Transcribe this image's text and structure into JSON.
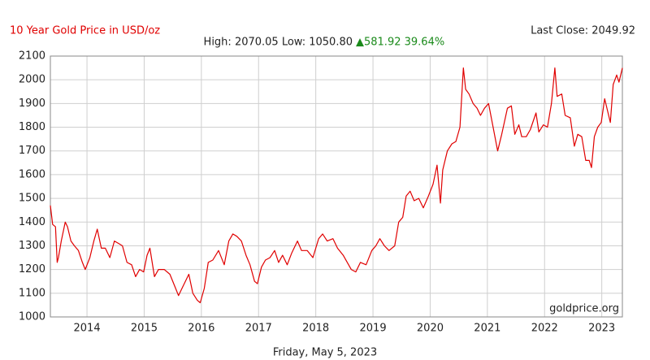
{
  "chart_data": {
    "type": "line",
    "title": "10 Year Gold Price in USD/oz",
    "last_close": "Last Close: 2049.92",
    "stats": "High: 2070.05 Low: 1050.80",
    "change": "▲581.92 39.64%",
    "source": "goldprice.org",
    "date": "Friday, May 5, 2023",
    "xlim": [
      2013.36,
      2023.36
    ],
    "xticks": [
      2014,
      2015,
      2016,
      2017,
      2018,
      2019,
      2020,
      2021,
      2022,
      2023
    ],
    "ylim": [
      1000,
      2100
    ],
    "yticks": [
      1000,
      1100,
      1200,
      1300,
      1400,
      1500,
      1600,
      1700,
      1800,
      1900,
      2000,
      2100
    ],
    "grid": true,
    "x": [
      2013.36,
      2013.4,
      2013.45,
      2013.48,
      2013.5,
      2013.55,
      2013.62,
      2013.66,
      2013.72,
      2013.78,
      2013.85,
      2013.92,
      2013.97,
      2014.05,
      2014.12,
      2014.18,
      2014.25,
      2014.32,
      2014.4,
      2014.48,
      2014.55,
      2014.62,
      2014.7,
      2014.78,
      2014.85,
      2014.92,
      2014.99,
      2015.05,
      2015.1,
      2015.18,
      2015.25,
      2015.35,
      2015.45,
      2015.55,
      2015.6,
      2015.68,
      2015.78,
      2015.85,
      2015.93,
      2015.98,
      2016.05,
      2016.12,
      2016.2,
      2016.3,
      2016.4,
      2016.48,
      2016.55,
      2016.62,
      2016.7,
      2016.78,
      2016.85,
      2016.93,
      2016.98,
      2017.05,
      2017.12,
      2017.2,
      2017.28,
      2017.35,
      2017.42,
      2017.5,
      2017.58,
      2017.68,
      2017.75,
      2017.85,
      2017.95,
      2018.05,
      2018.12,
      2018.2,
      2018.3,
      2018.38,
      2018.48,
      2018.55,
      2018.62,
      2018.7,
      2018.78,
      2018.88,
      2018.98,
      2019.05,
      2019.12,
      2019.2,
      2019.28,
      2019.38,
      2019.45,
      2019.52,
      2019.58,
      2019.65,
      2019.72,
      2019.8,
      2019.88,
      2019.97,
      2020.05,
      2020.12,
      2020.18,
      2020.22,
      2020.3,
      2020.38,
      2020.45,
      2020.52,
      2020.58,
      2020.62,
      2020.68,
      2020.75,
      2020.82,
      2020.88,
      2020.95,
      2021.02,
      2021.1,
      2021.18,
      2021.25,
      2021.35,
      2021.42,
      2021.48,
      2021.55,
      2021.6,
      2021.68,
      2021.75,
      2021.85,
      2021.9,
      2021.98,
      2022.05,
      2022.12,
      2022.18,
      2022.22,
      2022.3,
      2022.36,
      2022.45,
      2022.52,
      2022.58,
      2022.65,
      2022.72,
      2022.78,
      2022.82,
      2022.87,
      2022.93,
      2022.99,
      2023.05,
      2023.1,
      2023.15,
      2023.2,
      2023.26,
      2023.3,
      2023.36
    ],
    "series": [
      {
        "name": "Gold",
        "color": "#e00000",
        "values": [
          1470,
          1390,
          1380,
          1230,
          1250,
          1320,
          1400,
          1380,
          1320,
          1300,
          1280,
          1230,
          1200,
          1250,
          1320,
          1370,
          1290,
          1290,
          1250,
          1320,
          1310,
          1300,
          1230,
          1220,
          1170,
          1200,
          1190,
          1260,
          1290,
          1170,
          1200,
          1200,
          1180,
          1120,
          1090,
          1130,
          1180,
          1100,
          1070,
          1060,
          1120,
          1230,
          1240,
          1280,
          1220,
          1320,
          1350,
          1340,
          1320,
          1260,
          1220,
          1150,
          1140,
          1210,
          1240,
          1250,
          1280,
          1230,
          1260,
          1220,
          1270,
          1320,
          1280,
          1280,
          1250,
          1330,
          1350,
          1320,
          1330,
          1290,
          1260,
          1230,
          1200,
          1190,
          1230,
          1220,
          1280,
          1300,
          1330,
          1300,
          1280,
          1300,
          1400,
          1420,
          1510,
          1530,
          1490,
          1500,
          1460,
          1510,
          1560,
          1640,
          1480,
          1620,
          1700,
          1730,
          1740,
          1800,
          2050,
          1960,
          1940,
          1900,
          1880,
          1850,
          1880,
          1900,
          1800,
          1700,
          1770,
          1880,
          1890,
          1770,
          1810,
          1760,
          1760,
          1790,
          1860,
          1780,
          1810,
          1800,
          1900,
          2050,
          1930,
          1940,
          1850,
          1840,
          1720,
          1770,
          1760,
          1660,
          1660,
          1630,
          1760,
          1800,
          1820,
          1920,
          1870,
          1820,
          1980,
          2020,
          1990,
          2050
        ]
      }
    ]
  }
}
